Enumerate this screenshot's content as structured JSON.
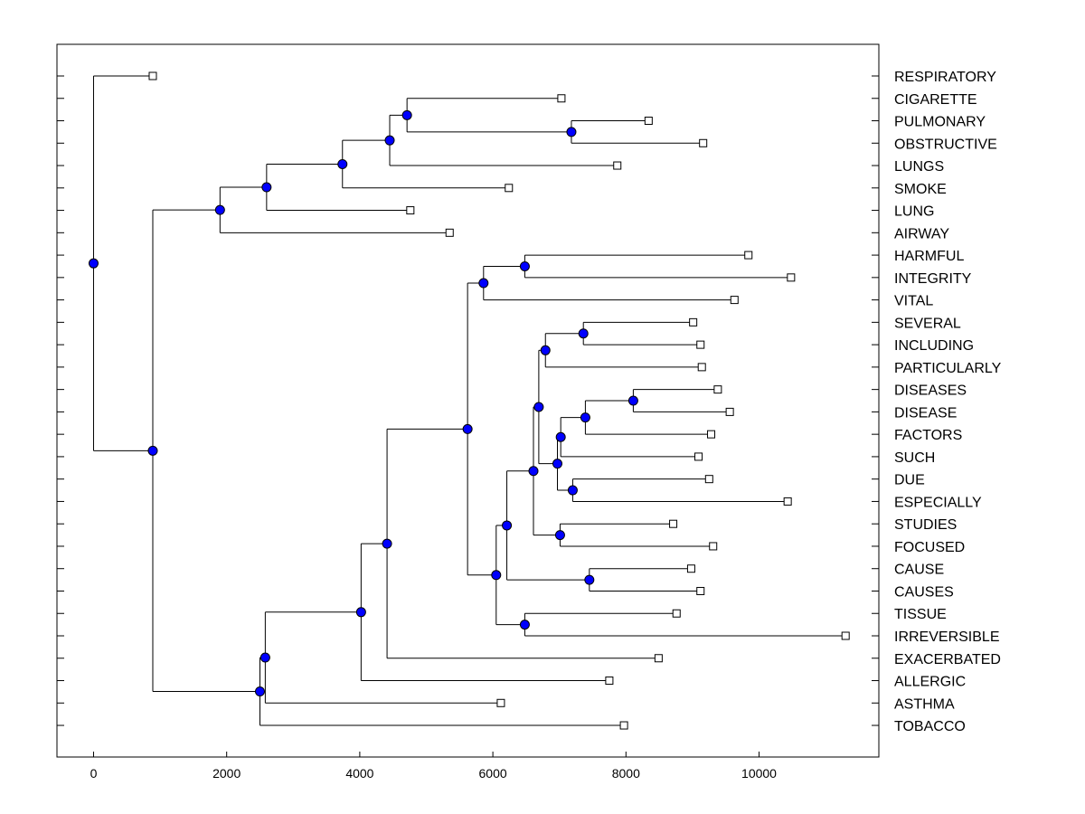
{
  "chart_data": {
    "type": "dendrogram",
    "orientation": "horizontal",
    "x_ticks": [
      0,
      2000,
      4000,
      6000,
      8000,
      10000
    ],
    "x_tick_labels": [
      "0",
      "2000",
      "4000",
      "6000",
      "8000",
      "10000"
    ],
    "xlim": [
      -550,
      11800
    ],
    "leaves": [
      {
        "label": "RESPIRATORY",
        "x": 890
      },
      {
        "label": "CIGARETTE",
        "x": 7030
      },
      {
        "label": "PULMONARY",
        "x": 8340
      },
      {
        "label": "OBSTRUCTIVE",
        "x": 9160
      },
      {
        "label": "LUNGS",
        "x": 7870
      },
      {
        "label": "SMOKE",
        "x": 6240
      },
      {
        "label": "LUNG",
        "x": 4760
      },
      {
        "label": "AIRWAY",
        "x": 5350
      },
      {
        "label": "HARMFUL",
        "x": 9840
      },
      {
        "label": "INTEGRITY",
        "x": 10480
      },
      {
        "label": "VITAL",
        "x": 9630
      },
      {
        "label": "SEVERAL",
        "x": 9010
      },
      {
        "label": "INCLUDING",
        "x": 9120
      },
      {
        "label": "PARTICULARLY",
        "x": 9140
      },
      {
        "label": "DISEASES",
        "x": 9380
      },
      {
        "label": "DISEASE",
        "x": 9560
      },
      {
        "label": "FACTORS",
        "x": 9280
      },
      {
        "label": "SUCH",
        "x": 9090
      },
      {
        "label": "DUE",
        "x": 9250
      },
      {
        "label": "ESPECIALLY",
        "x": 10430
      },
      {
        "label": "STUDIES",
        "x": 8710
      },
      {
        "label": "FOCUSED",
        "x": 9310
      },
      {
        "label": "CAUSE",
        "x": 8980
      },
      {
        "label": "CAUSES",
        "x": 9120
      },
      {
        "label": "TISSUE",
        "x": 8760
      },
      {
        "label": "IRREVERSIBLE",
        "x": 11300
      },
      {
        "label": "EXACERBATED",
        "x": 8490
      },
      {
        "label": "ALLERGIC",
        "x": 7750
      },
      {
        "label": "ASTHMA",
        "x": 6120
      },
      {
        "label": "TOBACCO",
        "x": 7970
      }
    ],
    "merges": [
      {
        "x": 7180,
        "children": [
          "l2",
          "l3"
        ]
      },
      {
        "x": 4710,
        "children": [
          "l1",
          "n0"
        ]
      },
      {
        "x": 4450,
        "children": [
          "n1",
          "l4"
        ]
      },
      {
        "x": 3740,
        "children": [
          "n2",
          "l5"
        ]
      },
      {
        "x": 2600,
        "children": [
          "n3",
          "l6"
        ]
      },
      {
        "x": 1900,
        "children": [
          "n4",
          "l7"
        ]
      },
      {
        "x": 6480,
        "children": [
          "l8",
          "l9"
        ]
      },
      {
        "x": 5860,
        "children": [
          "n6",
          "l10"
        ]
      },
      {
        "x": 7360,
        "children": [
          "l11",
          "l12"
        ]
      },
      {
        "x": 6790,
        "children": [
          "n8",
          "l13"
        ]
      },
      {
        "x": 8110,
        "children": [
          "l14",
          "l15"
        ]
      },
      {
        "x": 7390,
        "children": [
          "n10",
          "l16"
        ]
      },
      {
        "x": 7020,
        "children": [
          "n11",
          "l17"
        ]
      },
      {
        "x": 7200,
        "children": [
          "l18",
          "l19"
        ]
      },
      {
        "x": 6970,
        "children": [
          "n12",
          "n13"
        ]
      },
      {
        "x": 6690,
        "children": [
          "n9",
          "n14"
        ]
      },
      {
        "x": 7010,
        "children": [
          "l20",
          "l21"
        ]
      },
      {
        "x": 6610,
        "children": [
          "n15",
          "n16"
        ]
      },
      {
        "x": 7450,
        "children": [
          "l22",
          "l23"
        ]
      },
      {
        "x": 6210,
        "children": [
          "n17",
          "n18"
        ]
      },
      {
        "x": 6480,
        "children": [
          "l24",
          "l25"
        ]
      },
      {
        "x": 6050,
        "children": [
          "n19",
          "n20"
        ]
      },
      {
        "x": 5620,
        "children": [
          "n7",
          "n21"
        ]
      },
      {
        "x": 4410,
        "children": [
          "n22",
          "l26"
        ]
      },
      {
        "x": 4020,
        "children": [
          "n23",
          "l27"
        ]
      },
      {
        "x": 2580,
        "children": [
          "n24",
          "l28"
        ]
      },
      {
        "x": 2500,
        "children": [
          "n25",
          "l29"
        ]
      },
      {
        "x": 890,
        "children": [
          "n5",
          "n26"
        ]
      },
      {
        "x": 0,
        "children": [
          "l0",
          "n27"
        ]
      }
    ],
    "style": {
      "node_marker_color": "#0000ff",
      "leaf_marker_color": "#ffffff",
      "line_color": "#000000"
    }
  }
}
